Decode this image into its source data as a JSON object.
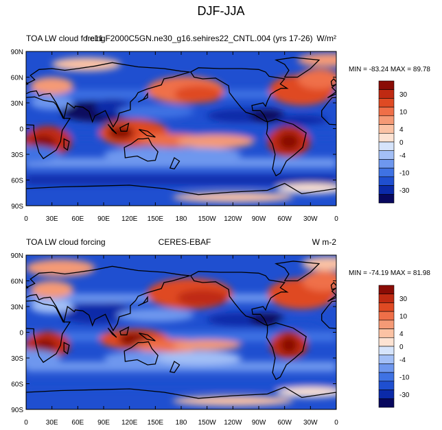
{
  "title": "DJF-JJA",
  "colors": {
    "palette": [
      "#08085e",
      "#0b2aa8",
      "#1f4fd0",
      "#3f72e3",
      "#6e97ee",
      "#a3bff6",
      "#d6e4fb",
      "#fde3d3",
      "#fbc2a4",
      "#f59a76",
      "#ef6f48",
      "#df4a23",
      "#bf2a12",
      "#8a0c05"
    ]
  },
  "chart_data": [
    {
      "type": "heatmap",
      "left_title": "TOA LW cloud forcing",
      "center_title": "f.e11.F2000C5GN.ne30_g16.sehires22_CNTL.004 (yrs 17-26)",
      "units": "W/m²",
      "min_max_text": "MIN = -83.24 MAX =  89.78",
      "min": -83.24,
      "max": 89.78,
      "y_ticks": [
        "90N",
        "60N",
        "30N",
        "0",
        "30S",
        "60S",
        "90S"
      ],
      "x_ticks": [
        "0",
        "30E",
        "60E",
        "90E",
        "120E",
        "150E",
        "180",
        "150W",
        "120W",
        "90W",
        "60W",
        "30W",
        "0"
      ],
      "colorbar_labels": [
        "30",
        "10",
        "4",
        "0",
        "-4",
        "-10",
        "-30"
      ],
      "xlim": [
        0,
        360
      ],
      "ylim": [
        -90,
        90
      ]
    },
    {
      "type": "heatmap",
      "left_title": "TOA LW cloud forcing",
      "center_title": "CERES-EBAF",
      "units": "W m-2",
      "min_max_text": "MIN = -74.19 MAX =  81.98",
      "min": -74.19,
      "max": 81.98,
      "y_ticks": [
        "90N",
        "60N",
        "30N",
        "0",
        "30S",
        "60S",
        "90S"
      ],
      "x_ticks": [
        "0",
        "30E",
        "60E",
        "90E",
        "120E",
        "150E",
        "180",
        "150W",
        "120W",
        "90W",
        "60W",
        "30W",
        "0"
      ],
      "colorbar_labels": [
        "30",
        "10",
        "4",
        "0",
        "-4",
        "-10",
        "-30"
      ],
      "xlim": [
        0,
        360
      ],
      "ylim": [
        -90,
        90
      ]
    }
  ]
}
